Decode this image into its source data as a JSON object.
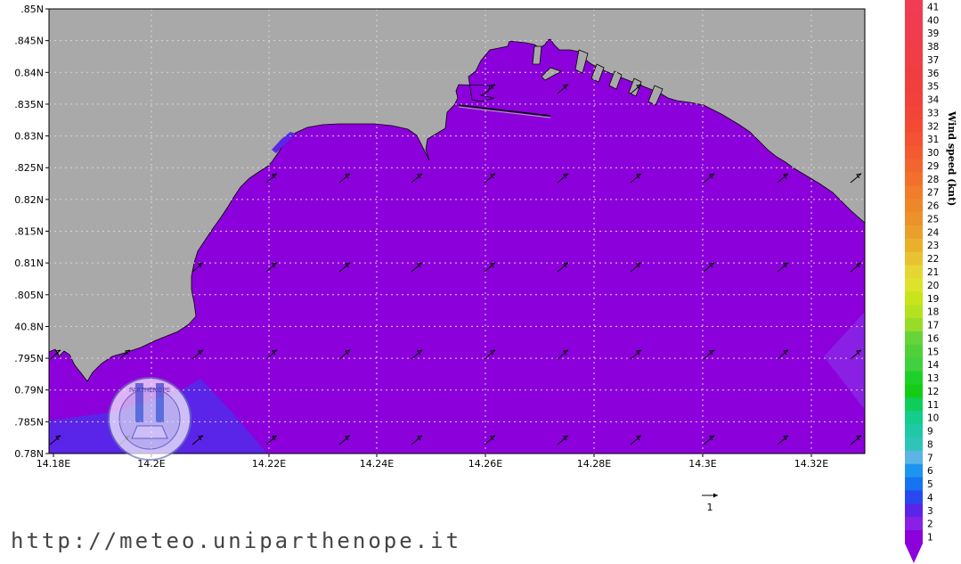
{
  "map": {
    "lat_labels": [
      ".85N",
      ".845N",
      "0.84N",
      ".835N",
      "0.83N",
      ".825N",
      "0.82N",
      ".815N",
      "0.81N",
      ".805N",
      "40.8N",
      ".795N",
      "0.79N",
      ".785N",
      "0.78N"
    ],
    "lon_labels": [
      "14.18E",
      "14.2E",
      "14.22E",
      "14.24E",
      "14.26E",
      "14.28E",
      "14.3E",
      "14.32E"
    ],
    "reference_vector_label": "1",
    "colors": {
      "land": "#a9a9a9",
      "sea": "#8c00dc",
      "sea_blue": "#5a25e8",
      "grid": "#d8d8d8"
    },
    "vector_direction": "north-east"
  },
  "colorbar": {
    "title": "Wind speed (knt)",
    "levels": [
      "1",
      "2",
      "3",
      "4",
      "5",
      "6",
      "7",
      "8",
      "9",
      "10",
      "11",
      "12",
      "13",
      "14",
      "15",
      "16",
      "17",
      "18",
      "19",
      "20",
      "21",
      "22",
      "23",
      "24",
      "25",
      "26",
      "27",
      "28",
      "29",
      "30",
      "31",
      "32",
      "33",
      "34",
      "35",
      "36",
      "37",
      "38",
      "39",
      "40",
      "41"
    ],
    "colors": [
      "#8c00dc",
      "#8a20e4",
      "#5a25e8",
      "#2848f0",
      "#1673f2",
      "#1d95ee",
      "#5ab4e6",
      "#2ec4b8",
      "#20c8a6",
      "#14cc8c",
      "#10cc5a",
      "#14cc14",
      "#1fd02a",
      "#40d040",
      "#52d03a",
      "#66d43a",
      "#98dc2a",
      "#b4e21e",
      "#c8e41a",
      "#dde32a",
      "#e6d635",
      "#e8c230",
      "#eab02c",
      "#ea9f2c",
      "#ec922a",
      "#ee862a",
      "#f07c2c",
      "#f2702c",
      "#f2652e",
      "#f45a30",
      "#f45232",
      "#f44a34",
      "#f24538",
      "#f0423a",
      "#f0403c",
      "#f03e40",
      "#f03e44",
      "#f03e48",
      "#f03c4c",
      "#f03c50",
      "#f03c56"
    ]
  },
  "logo": {
    "name": "university-seal",
    "text": "UNIVERSITA DI NAPOLI PARTHENOPE"
  },
  "footer": {
    "url": "http://meteo.uniparthenope.it"
  }
}
